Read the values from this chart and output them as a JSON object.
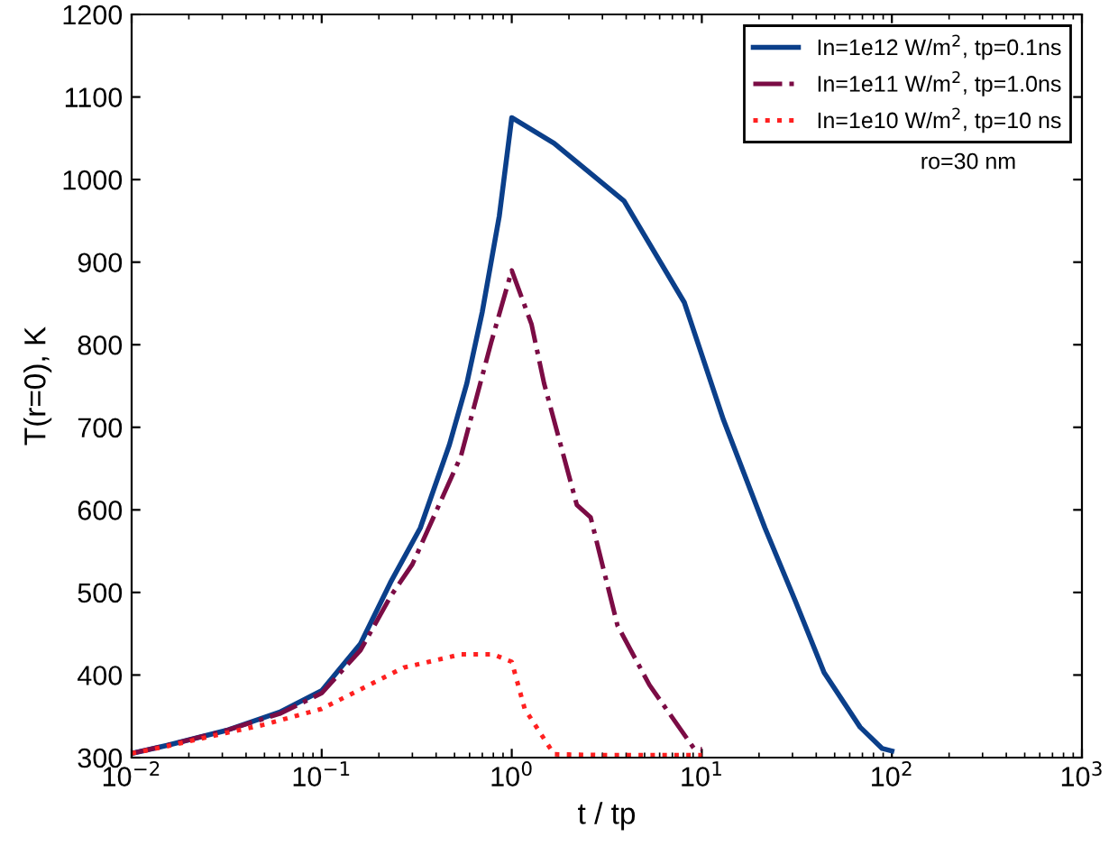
{
  "chart_data": {
    "type": "line",
    "xlabel": "t / tp",
    "ylabel": "T(r=0), K",
    "log": "x",
    "xlim": [
      0.01,
      1000
    ],
    "xticks": [
      {
        "value": 0.01,
        "label": "10$^{−2}$"
      },
      {
        "value": 0.1,
        "label": "10$^{−1}$"
      },
      {
        "value": 1,
        "label": "10$^{0}$"
      },
      {
        "value": 10,
        "label": "10$^{1}$"
      },
      {
        "value": 100,
        "label": "10$^{2}$"
      },
      {
        "value": 1000,
        "label": "10$^{3}$"
      }
    ],
    "ylim": [
      300,
      1200
    ],
    "yticks": [
      300,
      400,
      500,
      600,
      700,
      800,
      900,
      1000,
      1100,
      1200
    ],
    "grid": false,
    "legend": "top right",
    "marker": "none",
    "annotations": [
      "ro=30 nm"
    ],
    "series": [
      {
        "name": "In=1e12 W/m$^{2}$, tp=0.1ns",
        "color": "#0b3f8a",
        "line_style": "solid",
        "x": [
          0.01,
          0.0155,
          0.0316,
          0.06,
          0.1,
          0.16,
          0.23,
          0.33,
          0.47,
          0.58,
          0.7,
          0.86,
          1,
          1.67,
          3.9,
          8.1,
          13,
          21.5,
          31,
          44,
          68,
          89,
          100
        ],
        "values": [
          305,
          315,
          333,
          355,
          381,
          438,
          512,
          578,
          679,
          753,
          840,
          956,
          1075,
          1044,
          974,
          851,
          709,
          578,
          490,
          403,
          337,
          311,
          308
        ]
      },
      {
        "name": "In=1e11 W/m$^{2}$, tp=1.0ns",
        "color": "#7b0c45",
        "line_style": "dashdot",
        "x": [
          0.01,
          0.0155,
          0.0316,
          0.06,
          0.1,
          0.16,
          0.23,
          0.3,
          0.54,
          0.78,
          1,
          1.27,
          1.48,
          2.2,
          2.6,
          3.6,
          5.3,
          9.1,
          10
        ],
        "values": [
          305,
          315,
          333,
          353,
          378,
          430,
          495,
          534,
          665,
          803,
          890,
          825,
          753,
          606,
          591,
          460,
          388,
          311,
          310
        ]
      },
      {
        "name": "In=1e10 W/m$^{2}$, tp=10 ns",
        "color": "#ff2020",
        "line_style": "dotted",
        "x": [
          0.01,
          0.0155,
          0.0316,
          0.05,
          0.1,
          0.27,
          0.54,
          0.8,
          1,
          1.17,
          1.67,
          3,
          10
        ],
        "values": [
          305,
          314,
          330,
          340,
          359,
          409,
          425,
          425,
          416,
          359,
          304,
          303,
          303
        ]
      }
    ]
  }
}
